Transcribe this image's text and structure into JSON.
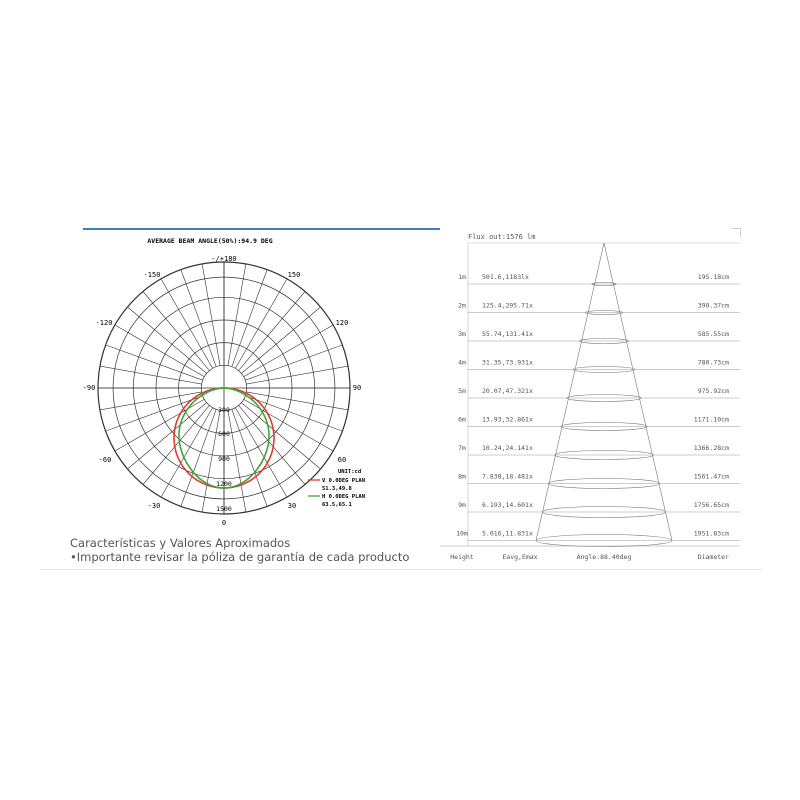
{
  "polar": {
    "title": "AVERAGE BEAM ANGLE(50%):94.9 DEG",
    "angle_labels": {
      "top": "-/+180",
      "n150": "-150",
      "p150": "150",
      "n120": "-120",
      "p120": "120",
      "n90": "-90",
      "p90": "90",
      "n60": "-60",
      "p60": "60",
      "n30": "-30",
      "p30": "30",
      "bottom": "0"
    },
    "radial_labels": [
      "300",
      "600",
      "900",
      "1200",
      "1500"
    ],
    "legend": {
      "unit": "UNIT:cd",
      "v_label": "V 0.0DEG PLAN",
      "v_values": "51.3,49.8",
      "h_label": "H 0.0DEG PLAN",
      "h_values": "63.5,65.1"
    },
    "colors": {
      "v_curve": "#e03b2f",
      "h_curve": "#3fa33a",
      "grid": "#333333"
    }
  },
  "cone": {
    "flux": "Flux out:1576 lm",
    "rows": [
      {
        "height": "1m",
        "values": "501.6,1183lx",
        "diameter": "195.18cm"
      },
      {
        "height": "2m",
        "values": "125.4,295.71x",
        "diameter": "390.37cm"
      },
      {
        "height": "3m",
        "values": "55.74,131.41x",
        "diameter": "585.55cm"
      },
      {
        "height": "4m",
        "values": "31.35,73.931x",
        "diameter": "780.73cm"
      },
      {
        "height": "5m",
        "values": "20.07,47.321x",
        "diameter": "975.92cm"
      },
      {
        "height": "6m",
        "values": "13.93,32.861x",
        "diameter": "1171.10cm"
      },
      {
        "height": "7m",
        "values": "10.24,24.141x",
        "diameter": "1366.28cm"
      },
      {
        "height": "8m",
        "values": "7.838,18.481x",
        "diameter": "1561.47cm"
      },
      {
        "height": "9m",
        "values": "6.193,14.601x",
        "diameter": "1756.65cm"
      },
      {
        "height": "10m",
        "values": "5.016,11.831x",
        "diameter": "1951.83cm"
      }
    ],
    "footer": {
      "height": "Height",
      "values": "Eavg,Emax",
      "angle": "Angle:88.40deg",
      "diameter": "Diameter"
    }
  },
  "caption": {
    "line1": "Características y Valores Aproximados",
    "line2": "•Importante revisar la póliza de garantía de cada producto"
  }
}
